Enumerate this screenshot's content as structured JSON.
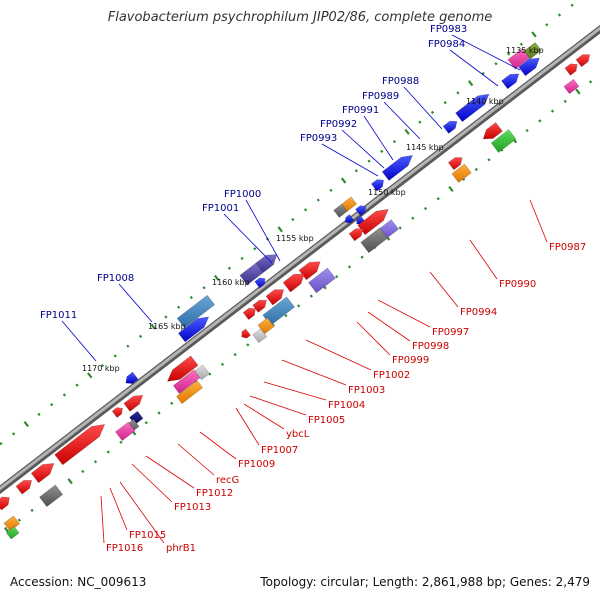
{
  "title": "Flavobacterium psychrophilum JIP02/86, complete genome",
  "accession": "Accession: NC_009613",
  "topology": "Topology: circular; Length: 2,861,988 bp; Genes: 2,479",
  "scale_ticks": [
    "1135 kbp",
    "1140 kbp",
    "1145 kbp",
    "1150 kbp",
    "1155 kbp",
    "1160 kbp",
    "1165 kbp",
    "1170 kbp"
  ],
  "labels_top": [
    "FP0983",
    "FP0984",
    "FP0988",
    "FP0989",
    "FP0991",
    "FP0992",
    "FP0993",
    "FP1000",
    "FP1001",
    "FP1008",
    "FP1011"
  ],
  "labels_bottom": [
    "FP0987",
    "FP0990",
    "FP0994",
    "FP0997",
    "FP0998",
    "FP0999",
    "FP1002",
    "FP1003",
    "FP1004",
    "FP1005",
    "ybcL",
    "FP1007",
    "FP1009",
    "recG",
    "FP1012",
    "FP1013",
    "phrB1",
    "FP1015",
    "FP1016"
  ],
  "colors": {
    "label_top": "#00008b",
    "label_bottom": "#cc0000",
    "leader_top": "#0000cc",
    "leader_bottom": "#dd0000",
    "backbone": "#8a8a8a",
    "tick": "#2e8b2e",
    "forward_gene": "#0a0aee",
    "reverse_gene": "#ee0a0a"
  }
}
